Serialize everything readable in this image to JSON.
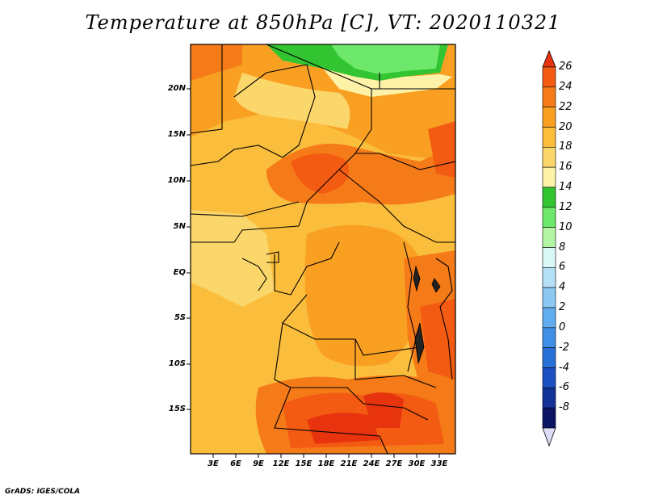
{
  "title": "Temperature at 850hPa [C], VT: 2020110321",
  "credit": "GrADS: IGES/COLA",
  "latitude_labels": [
    "20N",
    "15N",
    "10N",
    "5N",
    "EQ",
    "5S",
    "10S",
    "15S"
  ],
  "longitude_labels": [
    "3E",
    "6E",
    "9E",
    "12E",
    "15E",
    "18E",
    "21E",
    "24E",
    "27E",
    "30E",
    "33E"
  ],
  "colorbar": {
    "labels": [
      "26",
      "24",
      "22",
      "20",
      "18",
      "16",
      "14",
      "12",
      "10",
      "8",
      "6",
      "4",
      "2",
      "0",
      "-2",
      "-4",
      "-6",
      "-8"
    ],
    "colors": [
      "#e8340e",
      "#f45b12",
      "#f57a18",
      "#f9a023",
      "#fbbd3c",
      "#fbd66b",
      "#fdf2a8",
      "#33c432",
      "#6ee86a",
      "#b3f5a4",
      "#d9f8f5",
      "#b6e0f6",
      "#8dc8f3",
      "#62adf0",
      "#3f8fe6",
      "#2770d8",
      "#1c4fc1",
      "#153296",
      "#0b1564",
      "#ddddf8"
    ]
  }
}
